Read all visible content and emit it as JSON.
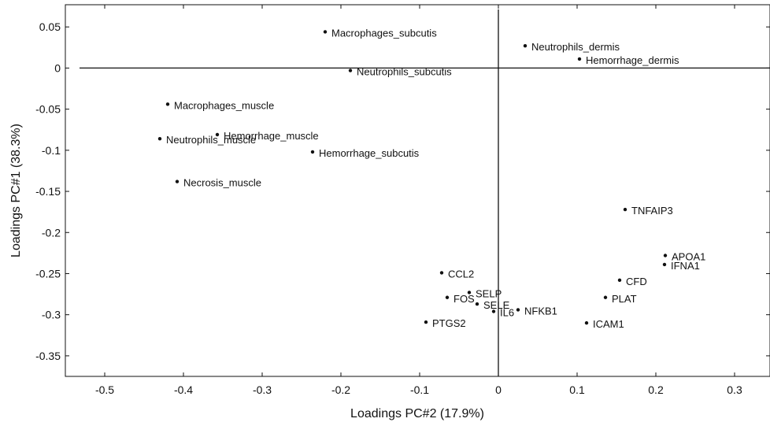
{
  "chart_data": {
    "type": "scatter",
    "xlabel": "Loadings PC#2 (17.9%)",
    "ylabel": "Loadings PC#1 (38.3%)",
    "xlim": [
      -0.55,
      0.345
    ],
    "ylim": [
      -0.375,
      0.077
    ],
    "x_ticks": [
      "-0.5",
      "-0.4",
      "-0.3",
      "-0.2",
      "-0.1",
      "0",
      "0.1",
      "0.2",
      "0.3"
    ],
    "y_ticks": [
      "0.05",
      "0",
      "-0.05",
      "-0.1",
      "-0.15",
      "-0.2",
      "-0.25",
      "-0.3",
      "-0.35"
    ],
    "grid": false,
    "zero_lines": true,
    "points": [
      {
        "label": "Macrophages_subcutis",
        "x": -0.22,
        "y": 0.044
      },
      {
        "label": "Neutrophils_dermis",
        "x": 0.034,
        "y": 0.027
      },
      {
        "label": "Hemorrhage_dermis",
        "x": 0.103,
        "y": 0.011
      },
      {
        "label": "Neutrophils_subcutis",
        "x": -0.188,
        "y": -0.003
      },
      {
        "label": "Macrophages_muscle",
        "x": -0.42,
        "y": -0.044
      },
      {
        "label": "Hemorrhage_muscle",
        "x": -0.357,
        "y": -0.081
      },
      {
        "label": "Neutrophils_muscle",
        "x": -0.43,
        "y": -0.086
      },
      {
        "label": "Hemorrhage_subcutis",
        "x": -0.236,
        "y": -0.102
      },
      {
        "label": "Necrosis_muscle",
        "x": -0.408,
        "y": -0.138
      },
      {
        "label": "TNFAIP3",
        "x": 0.161,
        "y": -0.172
      },
      {
        "label": "APOA1",
        "x": 0.212,
        "y": -0.228
      },
      {
        "label": "IFNA1",
        "x": 0.211,
        "y": -0.239
      },
      {
        "label": "CCL2",
        "x": -0.072,
        "y": -0.249
      },
      {
        "label": "CFD",
        "x": 0.154,
        "y": -0.258
      },
      {
        "label": "PLAT",
        "x": 0.136,
        "y": -0.279
      },
      {
        "label": "FOS",
        "x": -0.065,
        "y": -0.279
      },
      {
        "label": "SELP",
        "x": -0.037,
        "y": -0.273
      },
      {
        "label": "SELE",
        "x": -0.027,
        "y": -0.287
      },
      {
        "label": "IL6",
        "x": -0.006,
        "y": -0.296
      },
      {
        "label": "NFKB1",
        "x": 0.025,
        "y": -0.294
      },
      {
        "label": "ICAM1",
        "x": 0.112,
        "y": -0.31
      },
      {
        "label": "PTGS2",
        "x": -0.092,
        "y": -0.309
      }
    ]
  }
}
